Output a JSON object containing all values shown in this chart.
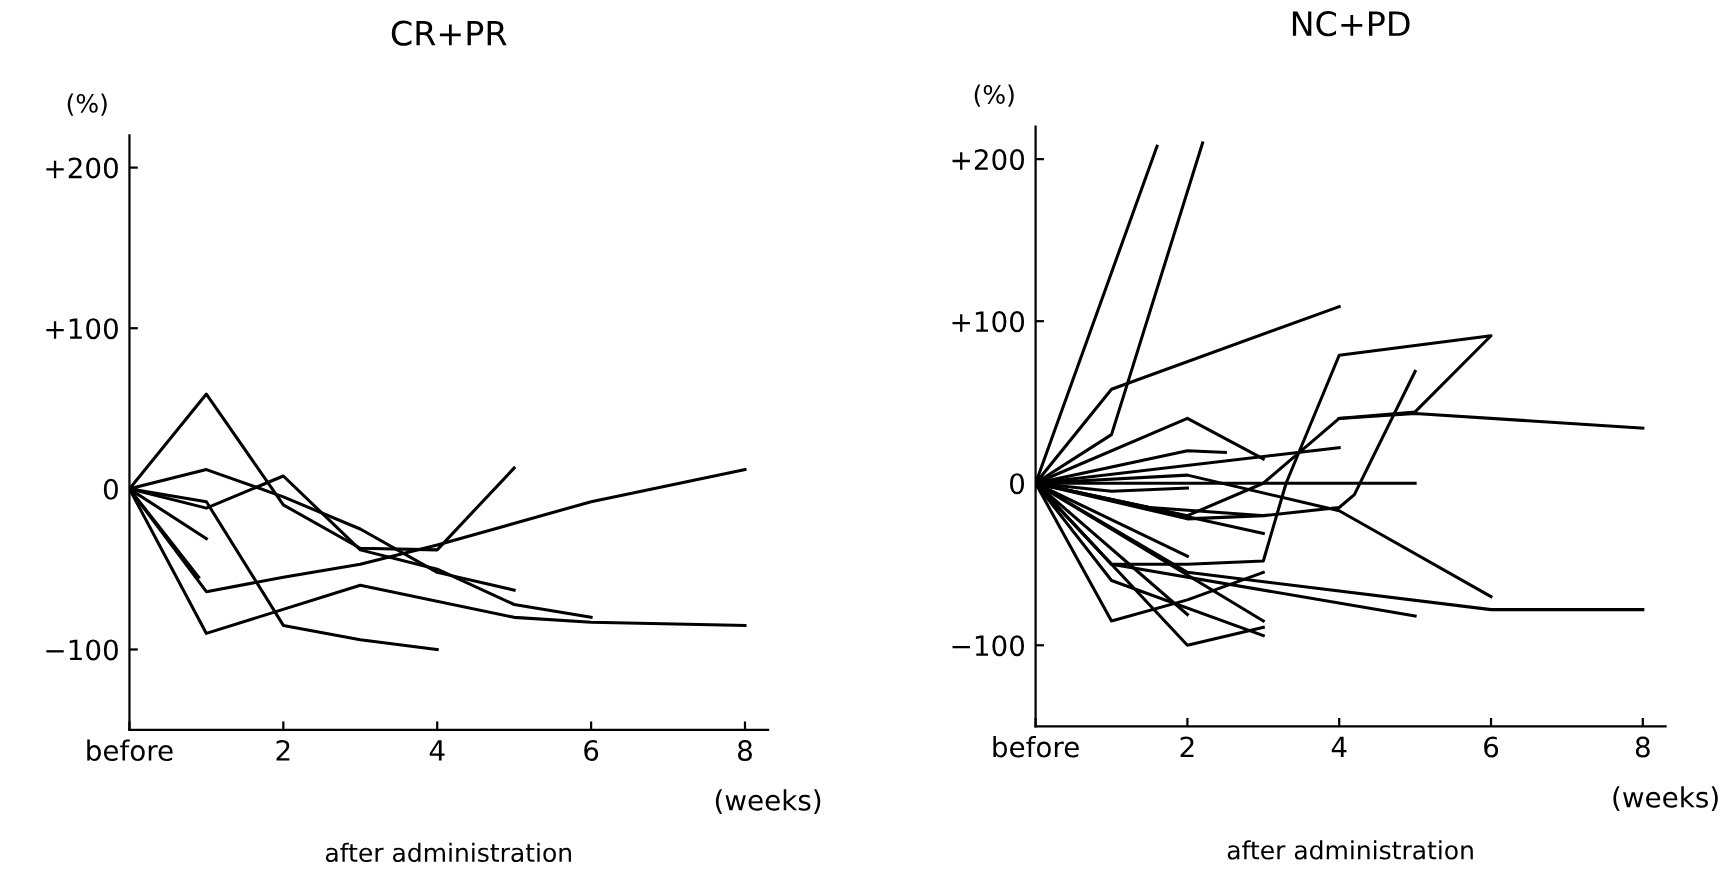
{
  "chart_data": [
    {
      "type": "line",
      "title": "CR+PR",
      "xlabel": "after administration",
      "ylabel": "(%)",
      "annotations": [
        "(weeks)"
      ],
      "grid": false,
      "legend": false,
      "xlim": [
        0,
        8.3
      ],
      "xticks": [
        {
          "value": 0,
          "label": "before"
        },
        2,
        4,
        6,
        8
      ],
      "ylim": [
        -150,
        220
      ],
      "yticks": [
        {
          "value": 200,
          "label": "+200"
        },
        {
          "value": 100,
          "label": "+100"
        },
        0,
        {
          "value": -100,
          "label": "−100"
        }
      ],
      "series": [
        {
          "color": "#000000",
          "x": [
            0,
            1,
            2,
            3,
            4,
            5
          ],
          "values": [
            0,
            59,
            -10,
            -37,
            -38,
            13
          ]
        },
        {
          "color": "#000000",
          "x": [
            0,
            1,
            2,
            3,
            4,
            5
          ],
          "values": [
            0,
            12,
            -5,
            -25,
            -52,
            -63
          ]
        },
        {
          "color": "#000000",
          "x": [
            0,
            1,
            2,
            3,
            4,
            5,
            6
          ],
          "values": [
            0,
            -12,
            8,
            -38,
            -50,
            -72,
            -80
          ]
        },
        {
          "color": "#000000",
          "x": [
            0,
            1,
            2,
            3,
            4
          ],
          "values": [
            0,
            -8,
            -85,
            -94,
            -100
          ]
        },
        {
          "color": "#000000",
          "x": [
            0,
            1,
            2,
            3,
            4,
            6,
            8
          ],
          "values": [
            0,
            -64,
            -55,
            -47,
            -35,
            -8,
            12
          ]
        },
        {
          "color": "#000000",
          "x": [
            0,
            1,
            3,
            5,
            6,
            8
          ],
          "values": [
            0,
            -90,
            -60,
            -80,
            -83,
            -85
          ]
        },
        {
          "color": "#000000",
          "x": [
            0,
            0.9
          ],
          "values": [
            0,
            -55
          ]
        },
        {
          "color": "#000000",
          "x": [
            0,
            1
          ],
          "values": [
            0,
            -31
          ]
        }
      ]
    },
    {
      "type": "line",
      "title": "NC+PD",
      "xlabel": "after administration",
      "ylabel": "(%)",
      "annotations": [
        "(weeks)"
      ],
      "grid": false,
      "legend": false,
      "xlim": [
        0,
        8.3
      ],
      "xticks": [
        {
          "value": 0,
          "label": "before"
        },
        2,
        4,
        6,
        8
      ],
      "ylim": [
        -150,
        220
      ],
      "yticks": [
        {
          "value": 200,
          "label": "+200"
        },
        {
          "value": 100,
          "label": "+100"
        },
        0,
        {
          "value": -100,
          "label": "−100"
        }
      ],
      "series": [
        {
          "color": "#000000",
          "x": [
            0,
            1.6
          ],
          "values": [
            0,
            208
          ]
        },
        {
          "color": "#000000",
          "x": [
            0,
            1,
            2.2
          ],
          "values": [
            0,
            30,
            210
          ]
        },
        {
          "color": "#000000",
          "x": [
            0,
            1,
            4
          ],
          "values": [
            0,
            58,
            109
          ]
        },
        {
          "color": "#000000",
          "x": [
            0,
            2,
            3
          ],
          "values": [
            0,
            40,
            15
          ]
        },
        {
          "color": "#000000",
          "x": [
            0,
            1,
            2,
            3,
            3.3,
            4,
            6,
            5,
            4
          ],
          "values": [
            0,
            -50,
            -50,
            -48,
            0,
            79,
            91,
            44,
            40
          ]
        },
        {
          "color": "#000000",
          "x": [
            0,
            2,
            3,
            4,
            5,
            8
          ],
          "values": [
            0,
            -20,
            0,
            40,
            43,
            34
          ]
        },
        {
          "color": "#000000",
          "x": [
            0,
            2,
            3,
            4,
            4.2,
            5
          ],
          "values": [
            0,
            -22,
            -20,
            -15,
            -7,
            69
          ]
        },
        {
          "color": "#000000",
          "x": [
            0,
            2,
            2.5
          ],
          "values": [
            0,
            20,
            19
          ]
        },
        {
          "color": "#000000",
          "x": [
            0,
            4
          ],
          "values": [
            0,
            22
          ]
        },
        {
          "color": "#000000",
          "x": [
            0,
            5
          ],
          "values": [
            0,
            0
          ]
        },
        {
          "color": "#000000",
          "x": [
            0,
            2,
            4,
            6
          ],
          "values": [
            0,
            5,
            -17,
            -70
          ]
        },
        {
          "color": "#000000",
          "x": [
            0,
            3
          ],
          "values": [
            0,
            -31
          ]
        },
        {
          "color": "#000000",
          "x": [
            0,
            2
          ],
          "values": [
            0,
            -45
          ]
        },
        {
          "color": "#000000",
          "x": [
            0,
            1,
            2,
            3
          ],
          "values": [
            0,
            -85,
            -72,
            -55
          ]
        },
        {
          "color": "#000000",
          "x": [
            0,
            2,
            3
          ],
          "values": [
            0,
            -100,
            -89
          ]
        },
        {
          "color": "#000000",
          "x": [
            0,
            1,
            3
          ],
          "values": [
            0,
            -60,
            -94
          ]
        },
        {
          "color": "#000000",
          "x": [
            0,
            2,
            6,
            8
          ],
          "values": [
            0,
            -55,
            -78,
            -78
          ]
        },
        {
          "color": "#000000",
          "x": [
            0,
            1,
            5
          ],
          "values": [
            0,
            -50,
            -82
          ]
        },
        {
          "color": "#000000",
          "x": [
            0,
            2
          ],
          "values": [
            0,
            -81
          ]
        },
        {
          "color": "#000000",
          "x": [
            0,
            3
          ],
          "values": [
            0,
            -85
          ]
        },
        {
          "color": "#000000",
          "x": [
            0,
            1.5,
            3
          ],
          "values": [
            0,
            -15,
            -20
          ]
        },
        {
          "color": "#000000",
          "x": [
            0,
            1,
            2
          ],
          "values": [
            0,
            -5,
            -3
          ]
        }
      ]
    }
  ]
}
